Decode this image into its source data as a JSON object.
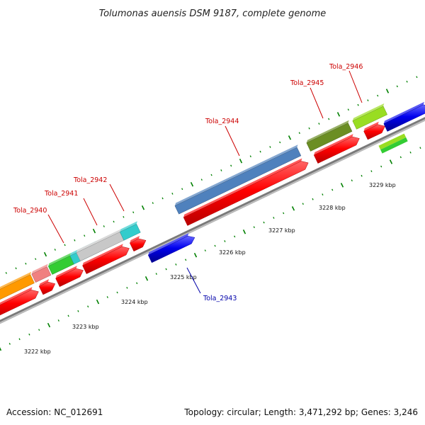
{
  "title": "Tolumonas auensis DSM 9187, complete genome",
  "footer": {
    "accession": "Accession: NC_012691",
    "summary": "Topology: circular; Length: 3,471,292 bp; Genes: 3,246"
  },
  "colors": {
    "backbone": "#8a8a8a",
    "cds_red": "#ff0000",
    "forward_blue": "#0000ee",
    "tick_green": "#008000",
    "label_red": "#cc0000",
    "label_blue": "#0000aa"
  },
  "kbp_labels": [
    "3222 kbp",
    "3223 kbp",
    "3224 kbp",
    "3225 kbp",
    "3226 kbp",
    "3227 kbp",
    "3228 kbp",
    "3229 kbp"
  ],
  "gene_labels": [
    {
      "id": "tola_2940",
      "text": "Tola_2940",
      "color": "#cc0000"
    },
    {
      "id": "tola_2941",
      "text": "Tola_2941",
      "color": "#cc0000"
    },
    {
      "id": "tola_2942",
      "text": "Tola_2942",
      "color": "#cc0000"
    },
    {
      "id": "tola_2943",
      "text": "Tola_2943",
      "color": "#0000aa"
    },
    {
      "id": "tola_2944",
      "text": "Tola_2944",
      "color": "#cc0000"
    },
    {
      "id": "tola_2945",
      "text": "Tola_2945",
      "color": "#cc0000"
    },
    {
      "id": "tola_2946",
      "text": "Tola_2946",
      "color": "#cc0000"
    }
  ],
  "feature_colors": {
    "orange": "#ff9900",
    "pink": "#f08080",
    "green": "#33cc33",
    "cyan": "#33cccc",
    "gray": "#c8c8c8",
    "steel": "#4f81bd",
    "olive": "#6b8e23",
    "lime": "#99dd22"
  }
}
